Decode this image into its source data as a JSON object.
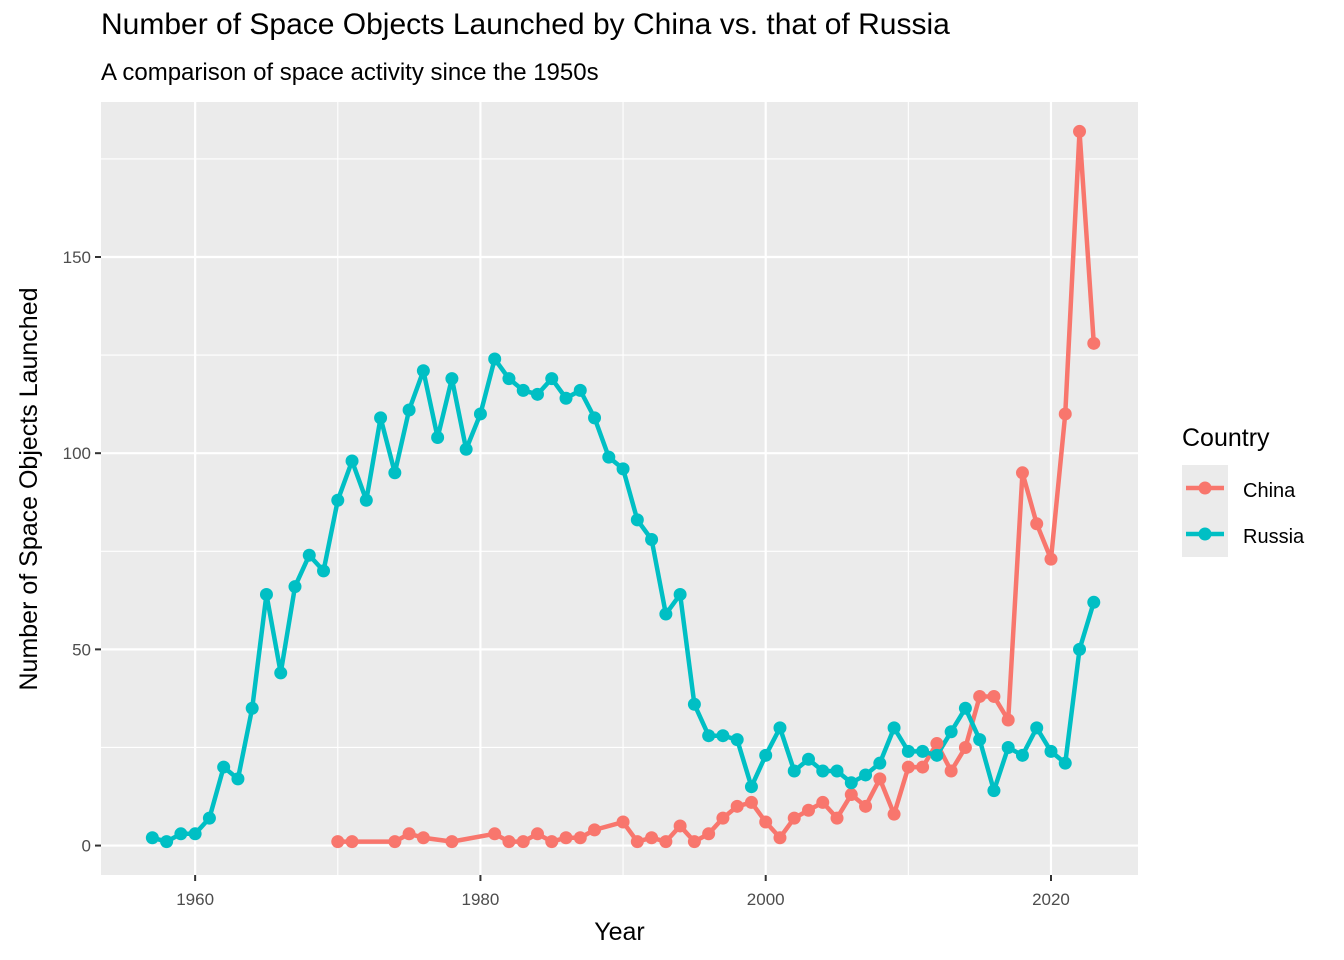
{
  "chart_data": {
    "type": "line",
    "title": "Number of Space Objects Launched by China vs. that of Russia",
    "subtitle": "A comparison of space activity since the 1950s",
    "xlabel": "Year",
    "ylabel": "Number of Space Objects Launched",
    "xlim": [
      1953.4,
      2026.1
    ],
    "ylim": [
      -7.5,
      189.5
    ],
    "x_ticks": [
      1960,
      1980,
      2000,
      2020
    ],
    "y_ticks": [
      0,
      50,
      100,
      150
    ],
    "grid": true,
    "legend": {
      "title": "Country",
      "position": "right"
    },
    "series": [
      {
        "name": "China",
        "color": "#F8766D",
        "points": [
          [
            1970,
            1
          ],
          [
            1971,
            1
          ],
          [
            1974,
            1
          ],
          [
            1975,
            3
          ],
          [
            1976,
            2
          ],
          [
            1978,
            1
          ],
          [
            1981,
            3
          ],
          [
            1982,
            1
          ],
          [
            1983,
            1
          ],
          [
            1984,
            3
          ],
          [
            1985,
            1
          ],
          [
            1986,
            2
          ],
          [
            1987,
            2
          ],
          [
            1988,
            4
          ],
          [
            1990,
            6
          ],
          [
            1991,
            1
          ],
          [
            1992,
            2
          ],
          [
            1993,
            1
          ],
          [
            1994,
            5
          ],
          [
            1995,
            1
          ],
          [
            1996,
            3
          ],
          [
            1997,
            7
          ],
          [
            1998,
            10
          ],
          [
            1999,
            11
          ],
          [
            2000,
            6
          ],
          [
            2001,
            2
          ],
          [
            2002,
            7
          ],
          [
            2003,
            9
          ],
          [
            2004,
            11
          ],
          [
            2005,
            7
          ],
          [
            2006,
            13
          ],
          [
            2007,
            10
          ],
          [
            2008,
            17
          ],
          [
            2009,
            8
          ],
          [
            2010,
            20
          ],
          [
            2011,
            20
          ],
          [
            2012,
            26
          ],
          [
            2013,
            19
          ],
          [
            2014,
            25
          ],
          [
            2015,
            38
          ],
          [
            2016,
            38
          ],
          [
            2017,
            32
          ],
          [
            2018,
            95
          ],
          [
            2019,
            82
          ],
          [
            2020,
            73
          ],
          [
            2021,
            110
          ],
          [
            2022,
            182
          ],
          [
            2023,
            128
          ]
        ]
      },
      {
        "name": "Russia",
        "color": "#00BFC4",
        "points": [
          [
            1957,
            2
          ],
          [
            1958,
            1
          ],
          [
            1959,
            3
          ],
          [
            1960,
            3
          ],
          [
            1961,
            7
          ],
          [
            1962,
            20
          ],
          [
            1963,
            17
          ],
          [
            1964,
            35
          ],
          [
            1965,
            64
          ],
          [
            1966,
            44
          ],
          [
            1967,
            66
          ],
          [
            1968,
            74
          ],
          [
            1969,
            70
          ],
          [
            1970,
            88
          ],
          [
            1971,
            98
          ],
          [
            1972,
            88
          ],
          [
            1973,
            109
          ],
          [
            1974,
            95
          ],
          [
            1975,
            111
          ],
          [
            1976,
            121
          ],
          [
            1977,
            104
          ],
          [
            1978,
            119
          ],
          [
            1979,
            101
          ],
          [
            1980,
            110
          ],
          [
            1981,
            124
          ],
          [
            1982,
            119
          ],
          [
            1983,
            116
          ],
          [
            1984,
            115
          ],
          [
            1985,
            119
          ],
          [
            1986,
            114
          ],
          [
            1987,
            116
          ],
          [
            1988,
            109
          ],
          [
            1989,
            99
          ],
          [
            1990,
            96
          ],
          [
            1991,
            83
          ],
          [
            1992,
            78
          ],
          [
            1993,
            59
          ],
          [
            1994,
            64
          ],
          [
            1995,
            36
          ],
          [
            1996,
            28
          ],
          [
            1997,
            28
          ],
          [
            1998,
            27
          ],
          [
            1999,
            15
          ],
          [
            2000,
            23
          ],
          [
            2001,
            30
          ],
          [
            2002,
            19
          ],
          [
            2003,
            22
          ],
          [
            2004,
            19
          ],
          [
            2005,
            19
          ],
          [
            2006,
            16
          ],
          [
            2007,
            18
          ],
          [
            2008,
            21
          ],
          [
            2009,
            30
          ],
          [
            2010,
            24
          ],
          [
            2011,
            24
          ],
          [
            2012,
            23
          ],
          [
            2013,
            29
          ],
          [
            2014,
            35
          ],
          [
            2015,
            27
          ],
          [
            2016,
            14
          ],
          [
            2017,
            25
          ],
          [
            2018,
            23
          ],
          [
            2019,
            30
          ],
          [
            2020,
            24
          ],
          [
            2021,
            21
          ],
          [
            2022,
            50
          ],
          [
            2023,
            62
          ]
        ]
      }
    ]
  }
}
